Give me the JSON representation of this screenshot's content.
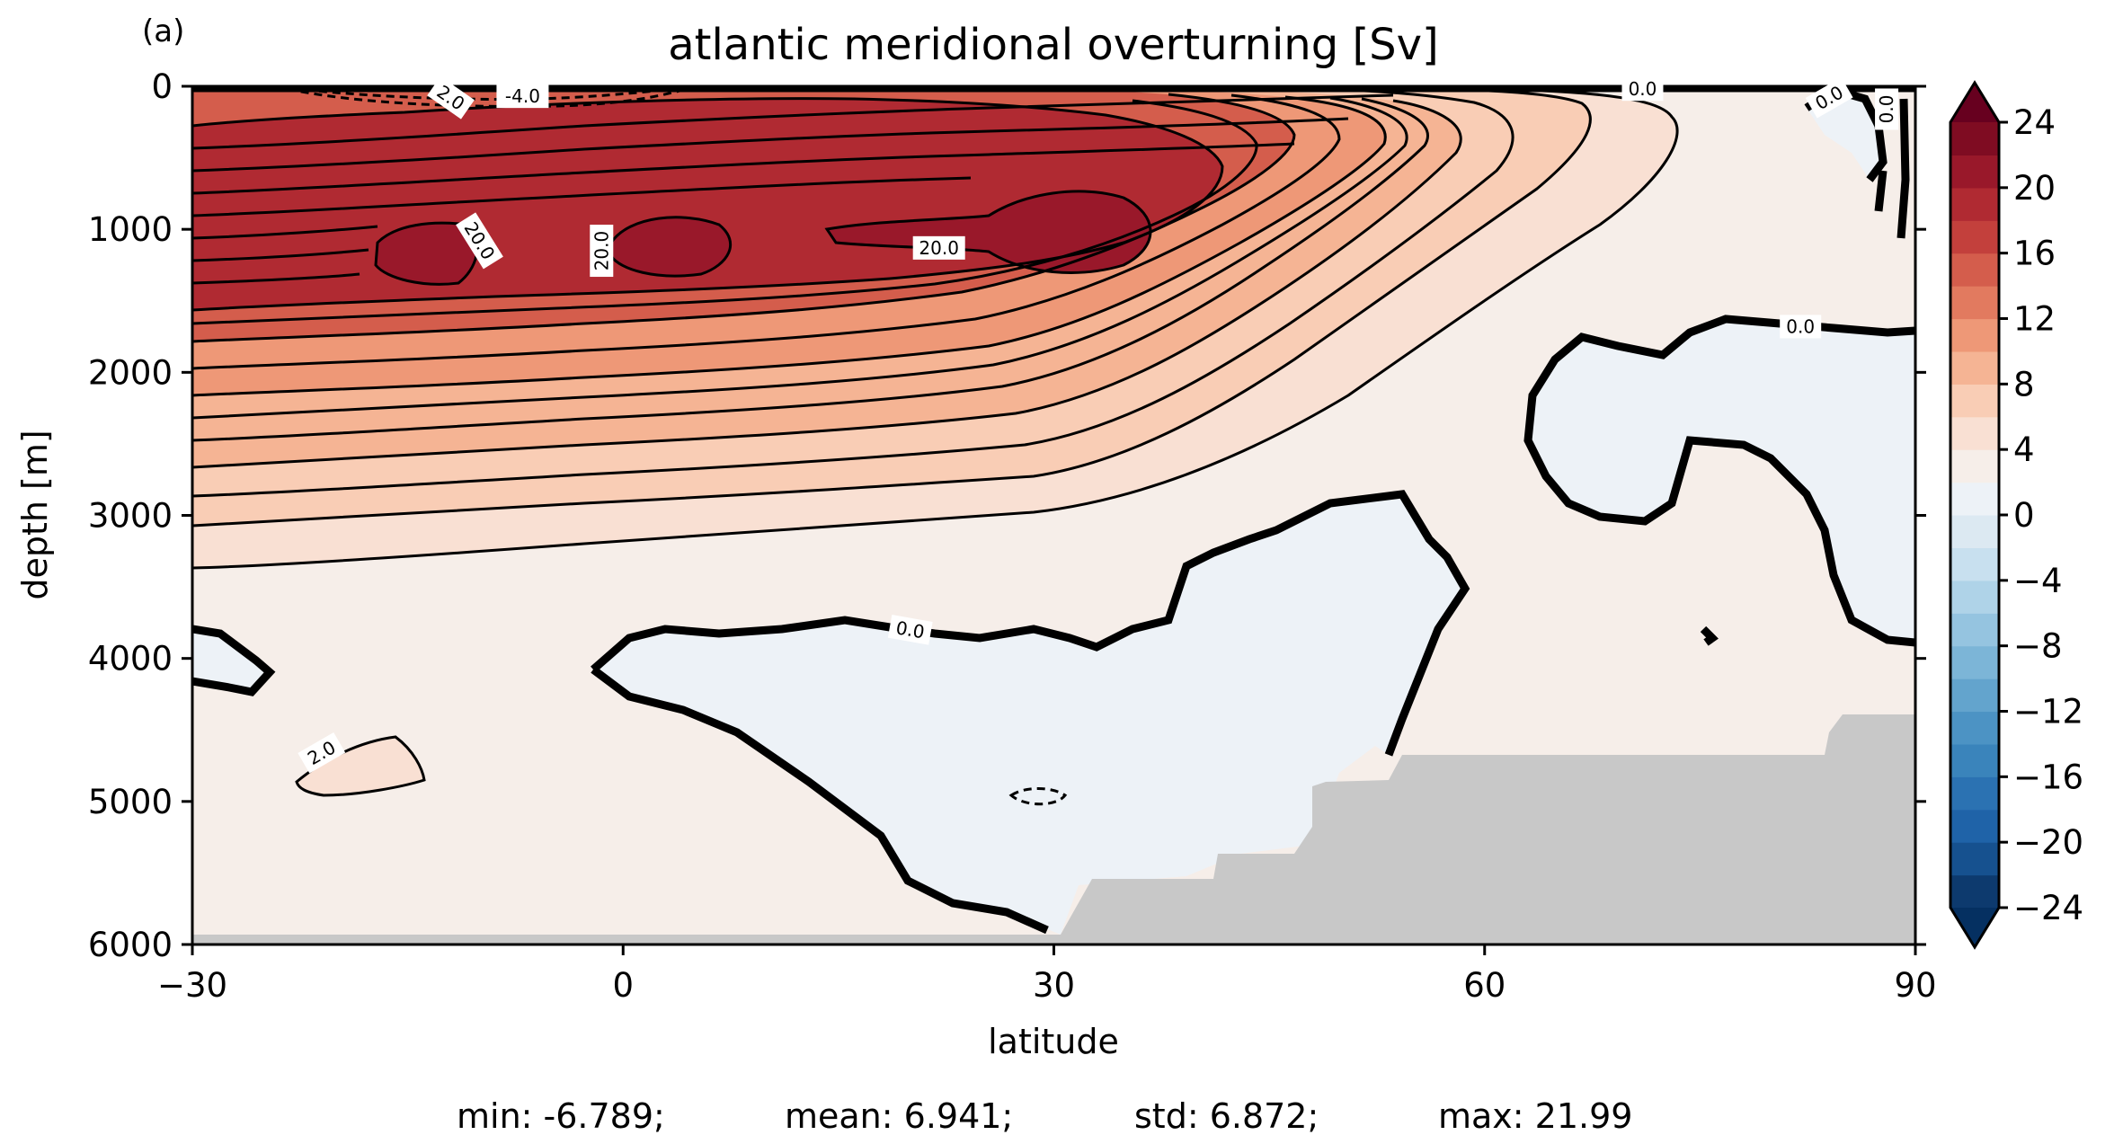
{
  "chart_data": {
    "type": "heatmap",
    "panel_label": "(a)",
    "title": "atlantic meridional overturning [Sv]",
    "xlabel": "latitude",
    "ylabel": "depth [m]",
    "xlim": [
      -30,
      90
    ],
    "ylim": [
      6000,
      0
    ],
    "xticks": [
      "−30",
      "0",
      "30",
      "60",
      "90"
    ],
    "xtick_values": [
      -30,
      0,
      30,
      60,
      90
    ],
    "yticks": [
      "0",
      "1000",
      "2000",
      "3000",
      "4000",
      "5000",
      "6000"
    ],
    "ytick_values": [
      0,
      1000,
      2000,
      3000,
      4000,
      5000,
      6000
    ],
    "colormap": "RdBu_r",
    "colorbar": {
      "ticks": [
        "24",
        "20",
        "16",
        "12",
        "8",
        "4",
        "0",
        "−4",
        "−8",
        "−12",
        "−16",
        "−20",
        "−24"
      ],
      "tick_values": [
        24,
        20,
        16,
        12,
        8,
        4,
        0,
        -4,
        -8,
        -12,
        -16,
        -20,
        -24
      ],
      "levels": [
        -24,
        -22,
        -20,
        -18,
        -16,
        -14,
        -12,
        -10,
        -8,
        -6,
        -4,
        -2,
        0,
        2,
        4,
        6,
        8,
        10,
        12,
        14,
        16,
        18,
        20,
        22,
        24
      ],
      "extend": "both",
      "colors": [
        "#0d3a6e",
        "#16518f",
        "#1f63a8",
        "#2b72b2",
        "#3a84bb",
        "#4c93c4",
        "#63a4cd",
        "#7cb5d7",
        "#95c4e0",
        "#afd3e8",
        "#c8e0ef",
        "#dce9f2",
        "#edf2f7",
        "#f6eee9",
        "#f9e0d3",
        "#f9cdb5",
        "#f5b494",
        "#ee9877",
        "#e27a5f",
        "#d45d4c",
        "#c3403c",
        "#b02a32",
        "#99182a",
        "#7f0c22"
      ],
      "under_color": "#053061",
      "over_color": "#67001f"
    },
    "landmask_color": "#c8c8c8",
    "contour_labels": [
      {
        "text": "-4.0",
        "lat": -7,
        "depth": 70,
        "angle": 0
      },
      {
        "text": "2.0",
        "lat": -12,
        "depth": 80,
        "angle": 35
      },
      {
        "text": "20.0",
        "lat": -10,
        "depth": 1080,
        "angle": 58
      },
      {
        "text": "20.0",
        "lat": -1.5,
        "depth": 1150,
        "angle": -90
      },
      {
        "text": "20.0",
        "lat": 22,
        "depth": 1130,
        "angle": 0
      },
      {
        "text": "0.0",
        "lat": 71,
        "depth": 20,
        "angle": 0
      },
      {
        "text": "0.0",
        "lat": 84,
        "depth": 80,
        "angle": -30
      },
      {
        "text": "0.0",
        "lat": 88,
        "depth": 160,
        "angle": -90
      },
      {
        "text": "0.0",
        "lat": 82,
        "depth": 1680,
        "angle": 0
      },
      {
        "text": "0.0",
        "lat": 20,
        "depth": 3800,
        "angle": 10
      },
      {
        "text": "2.0",
        "lat": -21,
        "depth": 4660,
        "angle": -30
      }
    ],
    "stats": {
      "min": "min: -6.789;",
      "mean": "mean: 6.941;",
      "std": "std: 6.872;",
      "max": "max: 21.99"
    }
  }
}
